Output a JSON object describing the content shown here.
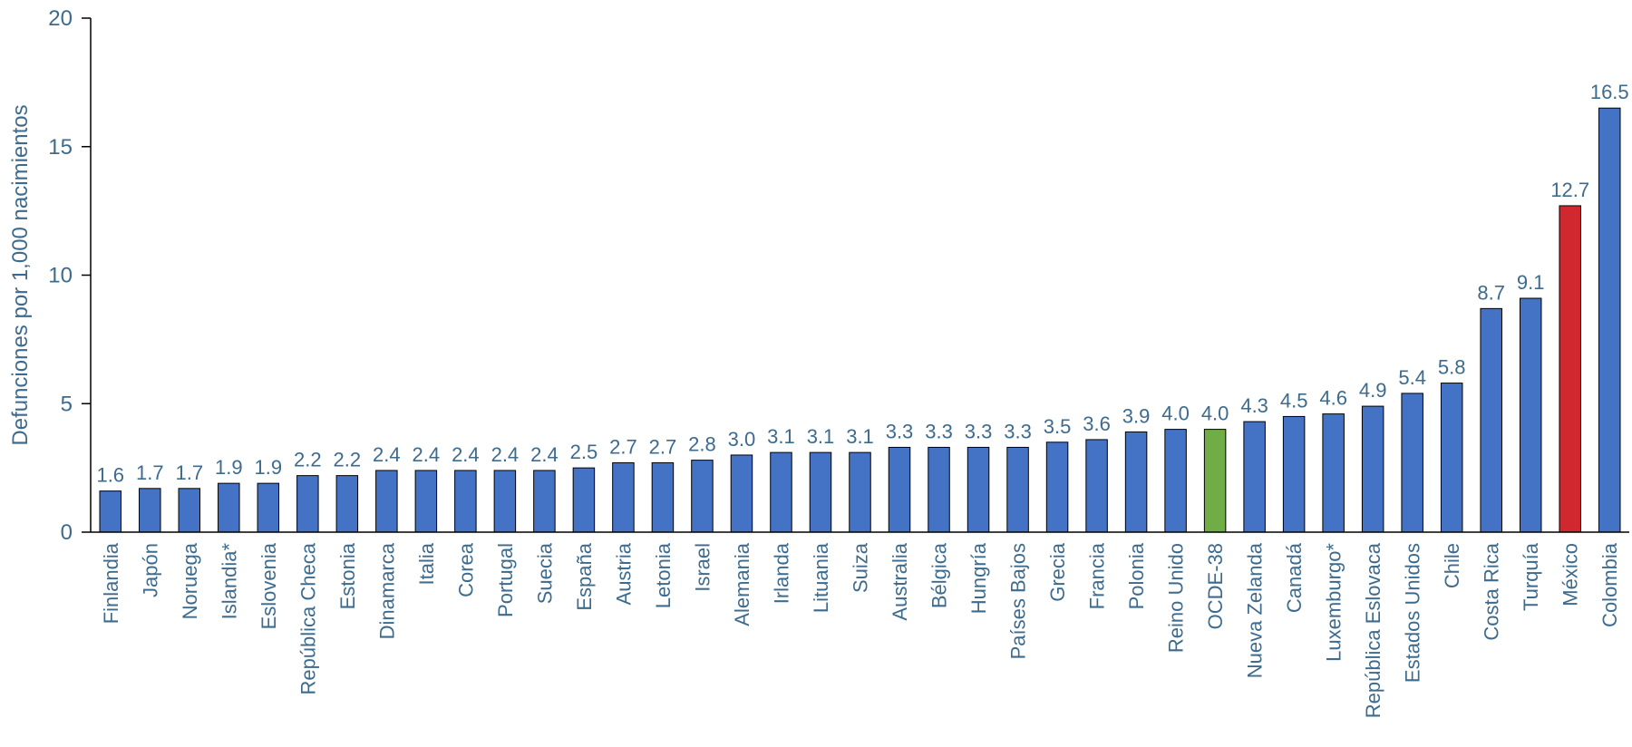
{
  "chart_data": {
    "type": "bar",
    "title": "",
    "xlabel": "",
    "ylabel": "Defunciones por 1,000 nacimientos",
    "ylim": [
      0,
      20
    ],
    "yticks": [
      0,
      5,
      10,
      15,
      20
    ],
    "grid": false,
    "categories": [
      "Finlandia",
      "Japón",
      "Noruega",
      "Islandia*",
      "Eslovenia",
      "República Checa",
      "Estonia",
      "Dinamarca",
      "Italia",
      "Corea",
      "Portugal",
      "Suecia",
      "España",
      "Austria",
      "Letonia",
      "Israel",
      "Alemania",
      "Irlanda",
      "Lituania",
      "Suiza",
      "Australia",
      "Bélgica",
      "Hungría",
      "Países Bajos",
      "Grecia",
      "Francia",
      "Polonia",
      "Reino Unido",
      "OCDE-38",
      "Nueva Zelanda",
      "Canadá",
      "Luxemburgo*",
      "República Eslovaca",
      "Estados Unidos",
      "Chile",
      "Costa Rica",
      "Turquía",
      "México",
      "Colombia"
    ],
    "values": [
      1.6,
      1.7,
      1.7,
      1.9,
      1.9,
      2.2,
      2.2,
      2.4,
      2.4,
      2.4,
      2.4,
      2.4,
      2.5,
      2.7,
      2.7,
      2.8,
      3.0,
      3.1,
      3.1,
      3.1,
      3.3,
      3.3,
      3.3,
      3.3,
      3.5,
      3.6,
      3.9,
      4.0,
      4.0,
      4.3,
      4.5,
      4.6,
      4.9,
      5.4,
      5.8,
      8.7,
      9.1,
      12.7,
      16.5
    ],
    "value_labels": [
      "1.6",
      "1.7",
      "1.7",
      "1.9",
      "1.9",
      "2.2",
      "2.2",
      "2.4",
      "2.4",
      "2.4",
      "2.4",
      "2.4",
      "2.5",
      "2.7",
      "2.7",
      "2.8",
      "3.0",
      "3.1",
      "3.1",
      "3.1",
      "3.3",
      "3.3",
      "3.3",
      "3.3",
      "3.5",
      "3.6",
      "3.9",
      "4.0",
      "4.0",
      "4.3",
      "4.5",
      "4.6",
      "4.9",
      "5.4",
      "5.8",
      "8.7",
      "9.1",
      "12.7",
      "16.5"
    ],
    "colors": {
      "default": "#4472c4",
      "highlight": {
        "OCDE-38": "#70ad47",
        "México": "#d0282e"
      }
    }
  }
}
